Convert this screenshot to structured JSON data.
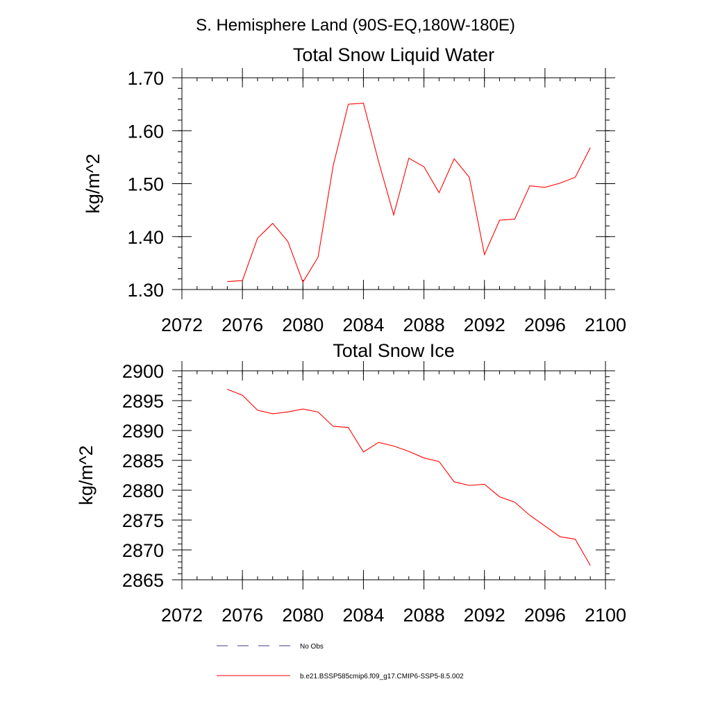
{
  "figure_title": "S. Hemisphere Land (90S-EQ,180W-180E)",
  "colors": {
    "series": "#ff0000",
    "obs": "#3a3a8c",
    "axis": "#000000"
  },
  "legend": {
    "placement": "bottom",
    "entries": [
      {
        "label": "No Obs",
        "style": "dashed",
        "color": "#3a3a8c"
      },
      {
        "label": "b.e21.BSSP585cmip6.f09_g17.CMIP6-SSP5-8.5.002",
        "style": "solid",
        "color": "#ff0000"
      }
    ]
  },
  "chart_data": [
    {
      "type": "line",
      "title": "Total Snow Liquid Water",
      "ylabel": "kg/m^2",
      "xlabel": "",
      "xlim": [
        2072,
        2100
      ],
      "ylim": [
        1.3,
        1.7
      ],
      "xticks": [
        2072,
        2076,
        2080,
        2084,
        2088,
        2092,
        2096,
        2100
      ],
      "yticks": [
        1.3,
        1.4,
        1.5,
        1.6,
        1.7
      ],
      "ytick_labels": [
        "1.30",
        "1.40",
        "1.50",
        "1.60",
        "1.70"
      ],
      "x_minor_step": 1,
      "y_minor_step": 0.02,
      "grid": false,
      "series": [
        {
          "name": "b.e21.BSSP585cmip6.f09_g17.CMIP6-SSP5-8.5.002",
          "x": [
            2075,
            2076,
            2077,
            2078,
            2079,
            2080,
            2081,
            2082,
            2083,
            2084,
            2085,
            2086,
            2087,
            2088,
            2089,
            2090,
            2091,
            2092,
            2093,
            2094,
            2095,
            2096,
            2097,
            2098,
            2099
          ],
          "values": [
            1.315,
            1.317,
            1.397,
            1.425,
            1.391,
            1.314,
            1.361,
            1.534,
            1.65,
            1.652,
            1.542,
            1.441,
            1.548,
            1.532,
            1.483,
            1.547,
            1.512,
            1.366,
            1.431,
            1.433,
            1.496,
            1.493,
            1.501,
            1.512,
            1.568
          ]
        }
      ]
    },
    {
      "type": "line",
      "title": "Total Snow Ice",
      "ylabel": "kg/m^2",
      "xlabel": "",
      "xlim": [
        2072,
        2100
      ],
      "ylim": [
        2865,
        2900
      ],
      "xticks": [
        2072,
        2076,
        2080,
        2084,
        2088,
        2092,
        2096,
        2100
      ],
      "yticks": [
        2865,
        2870,
        2875,
        2880,
        2885,
        2890,
        2895,
        2900
      ],
      "ytick_labels": [
        "2865",
        "2870",
        "2875",
        "2880",
        "2885",
        "2890",
        "2895",
        "2900"
      ],
      "x_minor_step": 1,
      "y_minor_step": 1,
      "grid": false,
      "series": [
        {
          "name": "b.e21.BSSP585cmip6.f09_g17.CMIP6-SSP5-8.5.002",
          "x": [
            2075,
            2076,
            2077,
            2078,
            2079,
            2080,
            2081,
            2082,
            2083,
            2084,
            2085,
            2086,
            2087,
            2088,
            2089,
            2090,
            2091,
            2092,
            2093,
            2094,
            2095,
            2096,
            2097,
            2098,
            2099
          ],
          "values": [
            2896.9,
            2895.9,
            2893.4,
            2892.8,
            2893.1,
            2893.6,
            2893.1,
            2890.7,
            2890.5,
            2886.4,
            2888.0,
            2887.4,
            2886.5,
            2885.4,
            2884.8,
            2881.4,
            2880.8,
            2881.0,
            2878.9,
            2878.0,
            2875.8,
            2874.0,
            2872.2,
            2871.8,
            2867.4
          ]
        }
      ]
    }
  ]
}
